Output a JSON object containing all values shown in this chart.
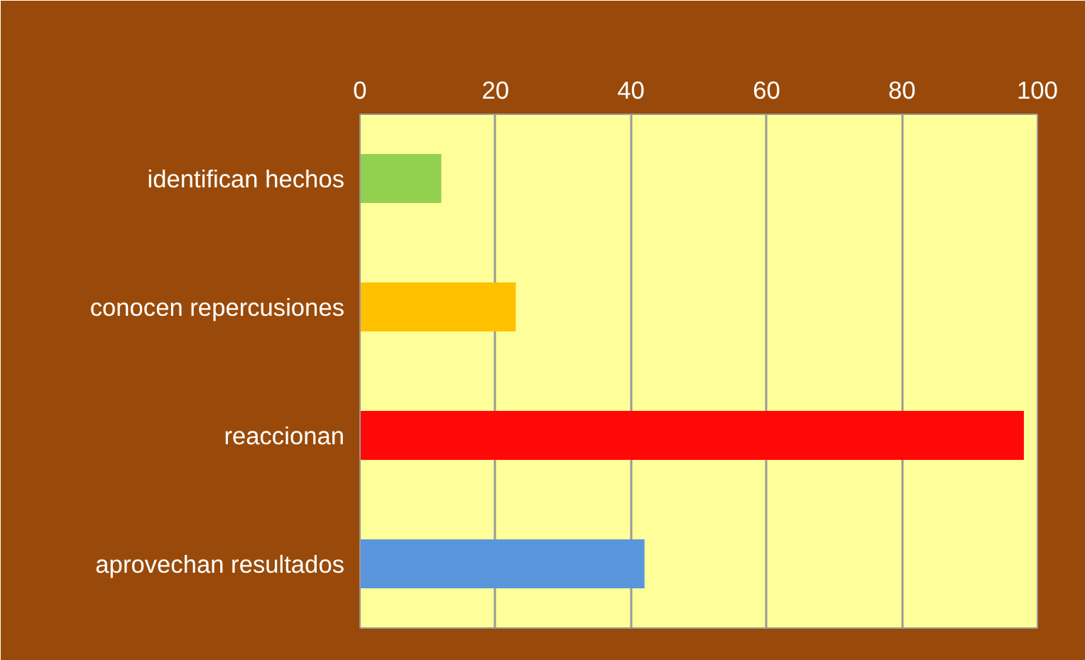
{
  "chart_data": {
    "type": "bar",
    "orientation": "horizontal",
    "categories": [
      "identifican hechos",
      "conocen repercusiones",
      "reaccionan",
      "aprovechan resultados"
    ],
    "values": [
      12,
      23,
      98,
      42
    ],
    "colors": [
      "#92d050",
      "#ffc000",
      "#ff0808",
      "#5b96dc"
    ],
    "xlim": [
      0,
      100
    ],
    "xticks": [
      0,
      20,
      40,
      60,
      80,
      100
    ],
    "grid": "x"
  }
}
